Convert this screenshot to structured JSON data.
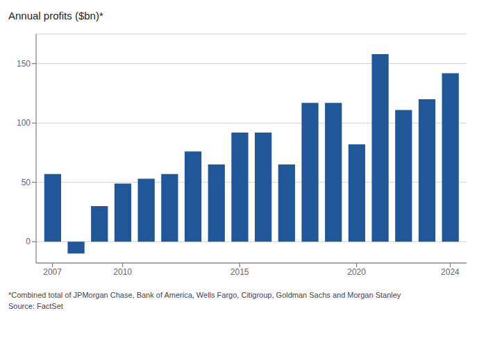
{
  "chart_data": {
    "type": "bar",
    "title": "Annual profits ($bn)*",
    "x": [
      2007,
      2008,
      2009,
      2010,
      2011,
      2012,
      2013,
      2014,
      2015,
      2016,
      2017,
      2018,
      2019,
      2020,
      2021,
      2022,
      2023,
      2024
    ],
    "values": [
      57,
      -10,
      30,
      49,
      53,
      57,
      76,
      65,
      92,
      92,
      65,
      117,
      117,
      82,
      158,
      111,
      120,
      142
    ],
    "color": "#1f5799",
    "xlim": [
      2006.3,
      2024.7
    ],
    "xticks": [
      2007,
      2010,
      2015,
      2020,
      2024
    ],
    "ylim": [
      -18,
      175
    ],
    "yticks": [
      0,
      50,
      100,
      150
    ],
    "grid": true,
    "annotations": [
      "*Combined total of JPMorgan Chase, Bank of America, Wells Fargo, Citigroup, Goldman Sachs and Morgan Stanley",
      "Source: FactSet"
    ]
  }
}
